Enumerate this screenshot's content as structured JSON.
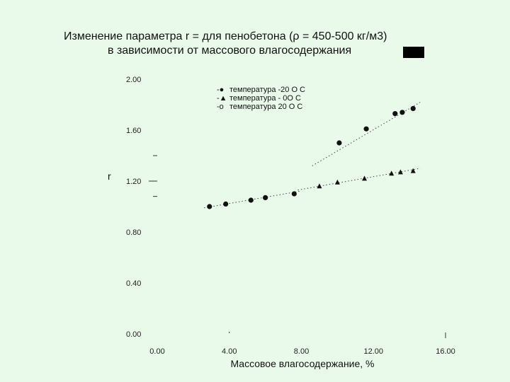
{
  "page": {
    "title_line1": "Изменение параметра r = для пенобетона (ρ  = 450-500 кг/м3)",
    "title_line2": "в зависимости от массового  влагосодержания"
  },
  "chart_data": {
    "type": "scatter",
    "title": "Изменение параметра r = для пенобетона (ρ  = 450-500 кг/м3) в зависимости от массового  влагосодержания",
    "xlabel": "Массовое  влагосодержание, %",
    "ylabel": "r",
    "xlim": [
      0,
      16
    ],
    "ylim": [
      0,
      2
    ],
    "x_ticks": [
      "0.00",
      "4.00",
      "8.00",
      "12.00",
      "16.00"
    ],
    "y_ticks": [
      "0.00",
      "0.40",
      "0.80",
      "1.20",
      "1.60",
      "2.00"
    ],
    "grid": false,
    "legend_position": "top-left",
    "series": [
      {
        "name": "температура -20 О С",
        "marker": "circle",
        "x": [
          10.1,
          11.6,
          13.2,
          13.6,
          14.2
        ],
        "y": [
          1.5,
          1.61,
          1.73,
          1.74,
          1.77
        ]
      },
      {
        "name": "температура -  0О С",
        "marker": "triangle",
        "x": [
          9.0,
          10.0,
          11.5,
          13.0,
          13.5,
          14.2
        ],
        "y": [
          1.16,
          1.19,
          1.22,
          1.26,
          1.27,
          1.28
        ]
      },
      {
        "name": "температура  20 О С",
        "marker": "circle",
        "x": [
          2.9,
          3.8,
          5.2,
          6.0,
          7.6
        ],
        "y": [
          1.0,
          1.02,
          1.05,
          1.07,
          1.1
        ]
      }
    ]
  },
  "colors": {
    "background": "#eafaea",
    "marker": "#111111"
  }
}
